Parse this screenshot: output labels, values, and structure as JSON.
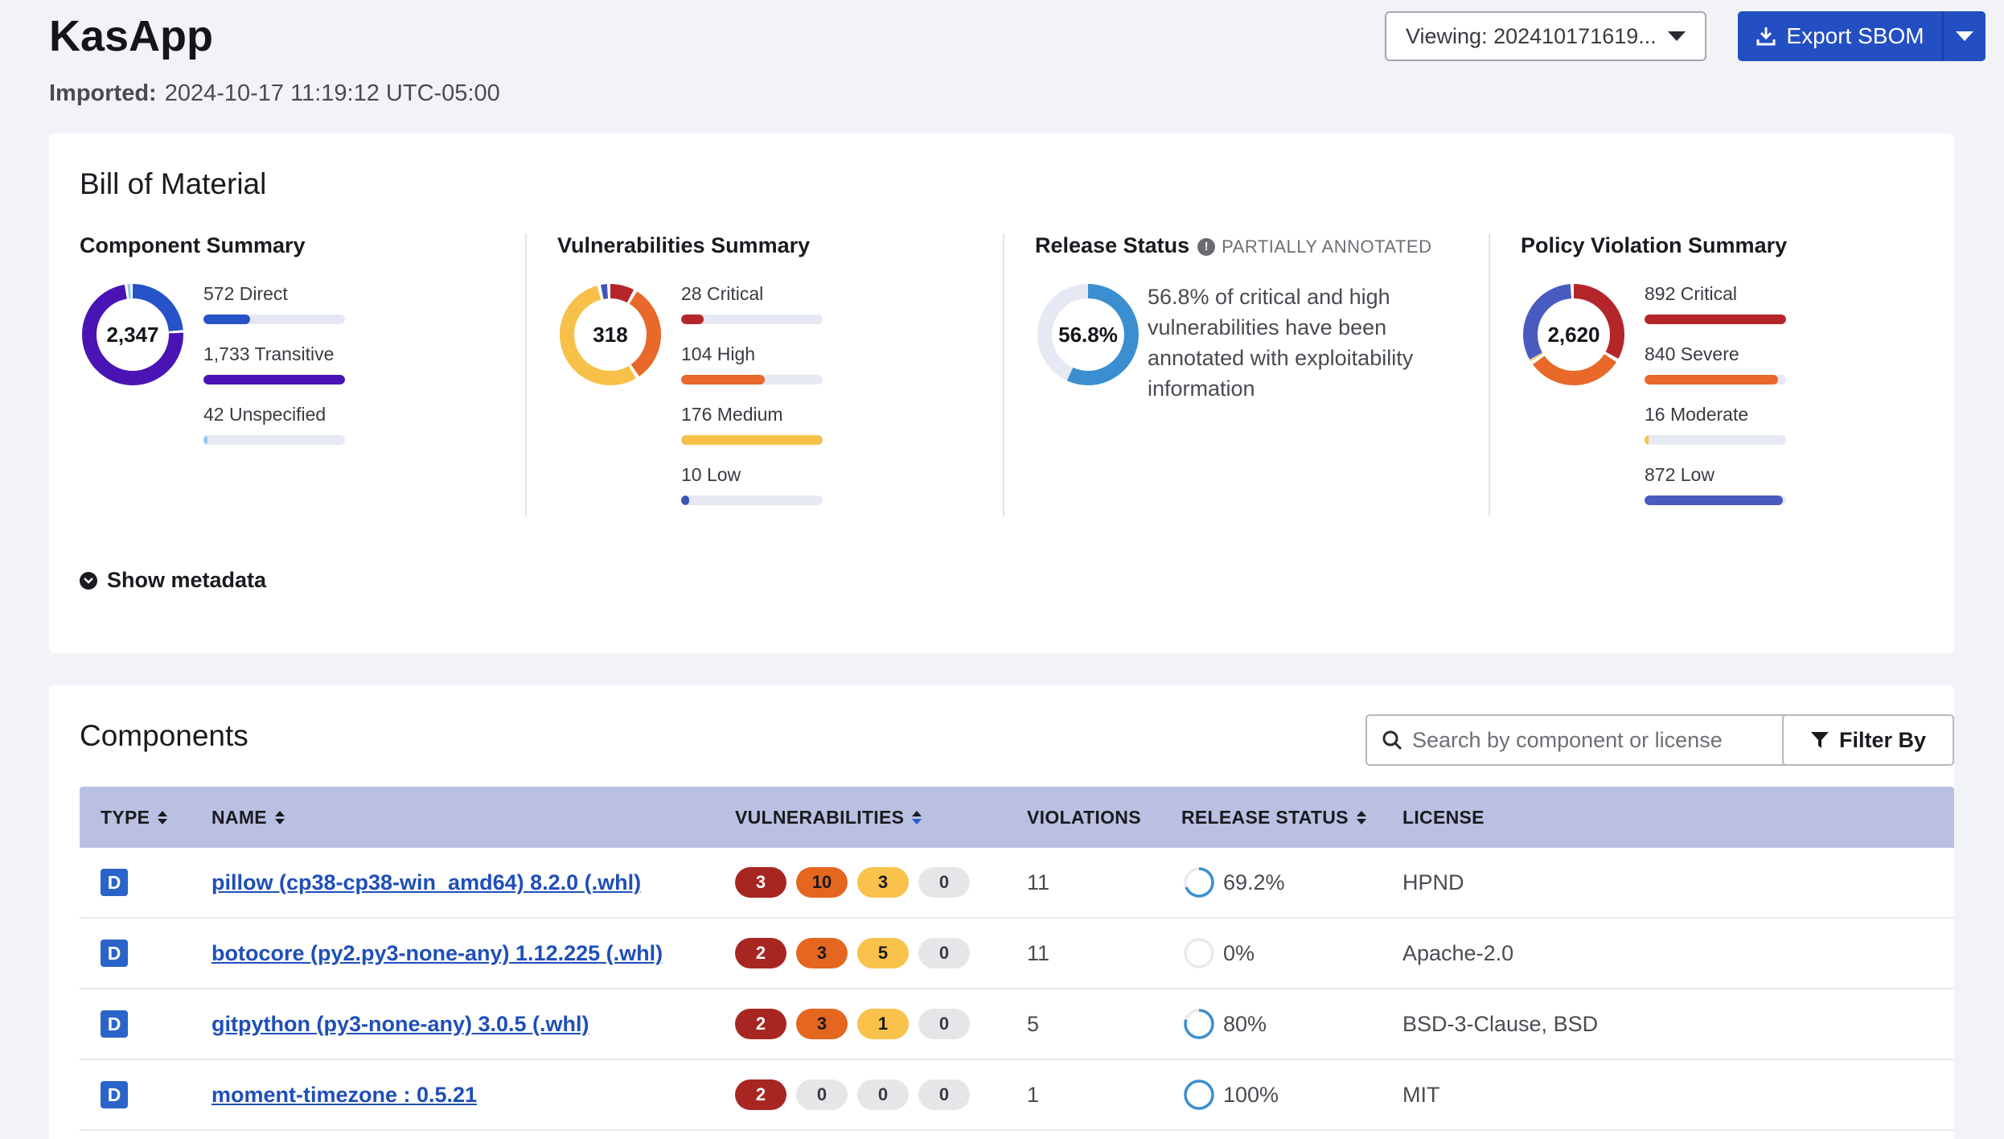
{
  "header": {
    "app_title": "KasApp",
    "imported_label": "Imported:",
    "imported_value": "2024-10-17 11:19:12 UTC-05:00",
    "viewing_label": "Viewing: 202410171619...",
    "export_label": "Export SBOM"
  },
  "bom": {
    "title": "Bill of Material",
    "component_summary": {
      "title": "Component Summary",
      "total": "2,347",
      "items": [
        {
          "label": "572 Direct",
          "value": 572,
          "color": "#2753c9"
        },
        {
          "label": "1,733 Transitive",
          "value": 1733,
          "color": "#4a14b5"
        },
        {
          "label": "42 Unspecified",
          "value": 42,
          "color": "#8fc9ea"
        }
      ]
    },
    "vulnerabilities_summary": {
      "title": "Vulnerabilities Summary",
      "total": "318",
      "items": [
        {
          "label": "28 Critical",
          "value": 28,
          "color": "#b5262a"
        },
        {
          "label": "104 High",
          "value": 104,
          "color": "#e8692a"
        },
        {
          "label": "176 Medium",
          "value": 176,
          "color": "#f7c149"
        },
        {
          "label": "10 Low",
          "value": 10,
          "color": "#3d56b5"
        }
      ]
    },
    "release_status": {
      "title": "Release Status",
      "note": "PARTIALLY ANNOTATED",
      "percent_label": "56.8%",
      "percent": 56.8,
      "description": "56.8% of critical and high vulnerabilities have been annotated with exploitability information",
      "color": "#3b8fd0"
    },
    "policy_violation_summary": {
      "title": "Policy Violation Summary",
      "total": "2,620",
      "items": [
        {
          "label": "892 Critical",
          "value": 892,
          "color": "#b5262a"
        },
        {
          "label": "840 Severe",
          "value": 840,
          "color": "#e8692a"
        },
        {
          "label": "16 Moderate",
          "value": 16,
          "color": "#f7c149"
        },
        {
          "label": "872 Low",
          "value": 872,
          "color": "#4a5bc0"
        }
      ]
    },
    "show_metadata": "Show metadata"
  },
  "components": {
    "title": "Components",
    "search_placeholder": "Search by component or license",
    "filter_label": "Filter By",
    "columns": {
      "type": "TYPE",
      "name": "NAME",
      "vulnerabilities": "VULNERABILITIES",
      "violations": "VIOLATIONS",
      "release_status": "RELEASE STATUS",
      "license": "LICENSE"
    },
    "rows": [
      {
        "type": "D",
        "name": "pillow (cp38-cp38-win_amd64) 8.2.0 (.whl)",
        "critical": "3",
        "high": "10",
        "medium": "3",
        "low": "0",
        "violations": "11",
        "release_label": "69.2%",
        "release": 69.2,
        "license": "HPND"
      },
      {
        "type": "D",
        "name": "botocore (py2.py3-none-any) 1.12.225 (.whl)",
        "critical": "2",
        "high": "3",
        "medium": "5",
        "low": "0",
        "violations": "11",
        "release_label": "0%",
        "release": 0,
        "license": "Apache-2.0"
      },
      {
        "type": "D",
        "name": "gitpython (py3-none-any) 3.0.5 (.whl)",
        "critical": "2",
        "high": "3",
        "medium": "1",
        "low": "0",
        "violations": "5",
        "release_label": "80%",
        "release": 80,
        "license": "BSD-3-Clause, BSD"
      },
      {
        "type": "D",
        "name": "moment-timezone : 0.5.21",
        "critical": "2",
        "high": "0",
        "medium": "0",
        "low": "0",
        "violations": "1",
        "release_label": "100%",
        "release": 100,
        "license": "MIT"
      }
    ]
  }
}
